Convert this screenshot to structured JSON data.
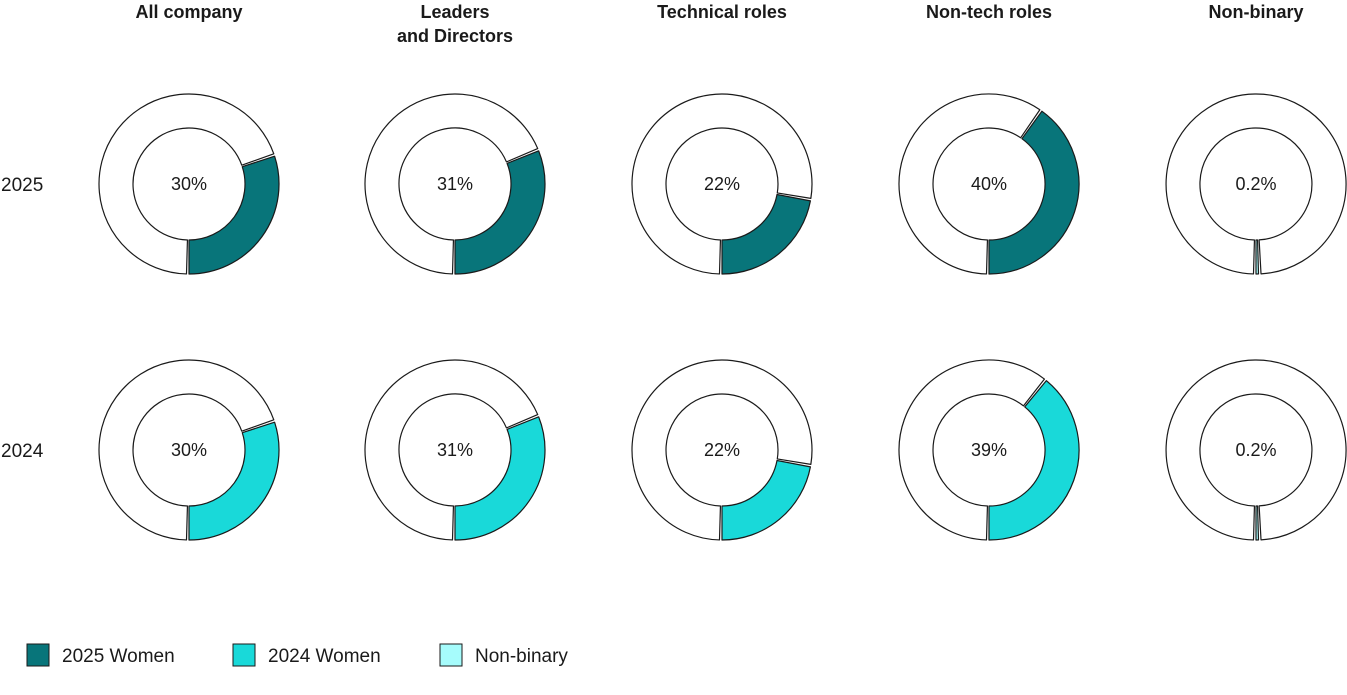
{
  "chart_data": {
    "type": "pie",
    "variant": "donut-grid",
    "columns": [
      {
        "title_lines": [
          "All company"
        ]
      },
      {
        "title_lines": [
          "Leaders",
          "and Directors"
        ]
      },
      {
        "title_lines": [
          "Technical roles"
        ]
      },
      {
        "title_lines": [
          "Non-tech roles"
        ]
      },
      {
        "title_lines": [
          "Non-binary"
        ]
      }
    ],
    "rows": [
      {
        "label": "2025",
        "series": "2025 Women",
        "cells": [
          {
            "value": 30,
            "label": "30%"
          },
          {
            "value": 31,
            "label": "31%"
          },
          {
            "value": 22,
            "label": "22%"
          },
          {
            "value": 40,
            "label": "40%"
          },
          {
            "value": 0.2,
            "label": "0.2%",
            "series": "Non-binary"
          }
        ]
      },
      {
        "label": "2024",
        "series": "2024 Women",
        "cells": [
          {
            "value": 30,
            "label": "30%"
          },
          {
            "value": 31,
            "label": "31%"
          },
          {
            "value": 22,
            "label": "22%"
          },
          {
            "value": 39,
            "label": "39%"
          },
          {
            "value": 0.2,
            "label": "0.2%",
            "series": "Non-binary"
          }
        ]
      }
    ],
    "legend": {
      "position": "bottom-left",
      "items": [
        {
          "label": "2025 Women",
          "color": "#08757a"
        },
        {
          "label": "2024 Women",
          "color": "#19d9d9"
        },
        {
          "label": "Non-binary",
          "color": "#a6fcfc"
        }
      ]
    },
    "colors": {
      "2025 Women": "#08757a",
      "2024 Women": "#19d9d9",
      "Non-binary": "#a6fcfc",
      "remainder": "#ffffff",
      "stroke": "#1a1a1a"
    }
  }
}
